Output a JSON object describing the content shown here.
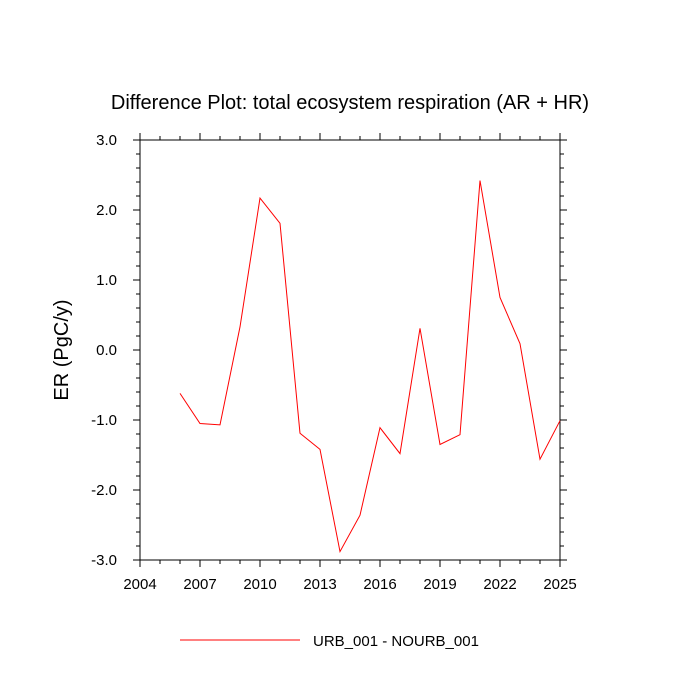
{
  "chart_data": {
    "type": "line",
    "title": "Difference Plot: total ecosystem respiration (AR + HR)",
    "xlabel": "",
    "ylabel": "ER  (PgC/y)",
    "xlim": [
      2004,
      2025
    ],
    "ylim": [
      -3.0,
      3.0
    ],
    "x_ticks": [
      2004,
      2007,
      2010,
      2013,
      2016,
      2019,
      2022,
      2025
    ],
    "x_tick_labels": [
      "2004",
      "2007",
      "2010",
      "2013",
      "2016",
      "2019",
      "2022",
      "2025"
    ],
    "y_ticks": [
      -3.0,
      -2.0,
      -1.0,
      0.0,
      1.0,
      2.0,
      3.0
    ],
    "y_tick_labels": [
      "-3.0",
      "-2.0",
      "-1.0",
      "0.0",
      "1.0",
      "2.0",
      "3.0"
    ],
    "grid": false,
    "legend_position": "bottom",
    "series": [
      {
        "name": "URB_001 - NOURB_001",
        "color": "#ff0000",
        "x": [
          2006,
          2007,
          2008,
          2009,
          2010,
          2011,
          2012,
          2013,
          2014,
          2015,
          2016,
          2017,
          2018,
          2019,
          2020,
          2021,
          2022,
          2023,
          2024,
          2025
        ],
        "values": [
          -0.62,
          -1.05,
          -1.07,
          0.33,
          2.17,
          1.81,
          -1.19,
          -1.42,
          -2.88,
          -2.36,
          -1.11,
          -1.48,
          0.31,
          -1.35,
          -1.21,
          2.42,
          0.75,
          0.09,
          -1.56,
          -1.01
        ]
      }
    ]
  }
}
